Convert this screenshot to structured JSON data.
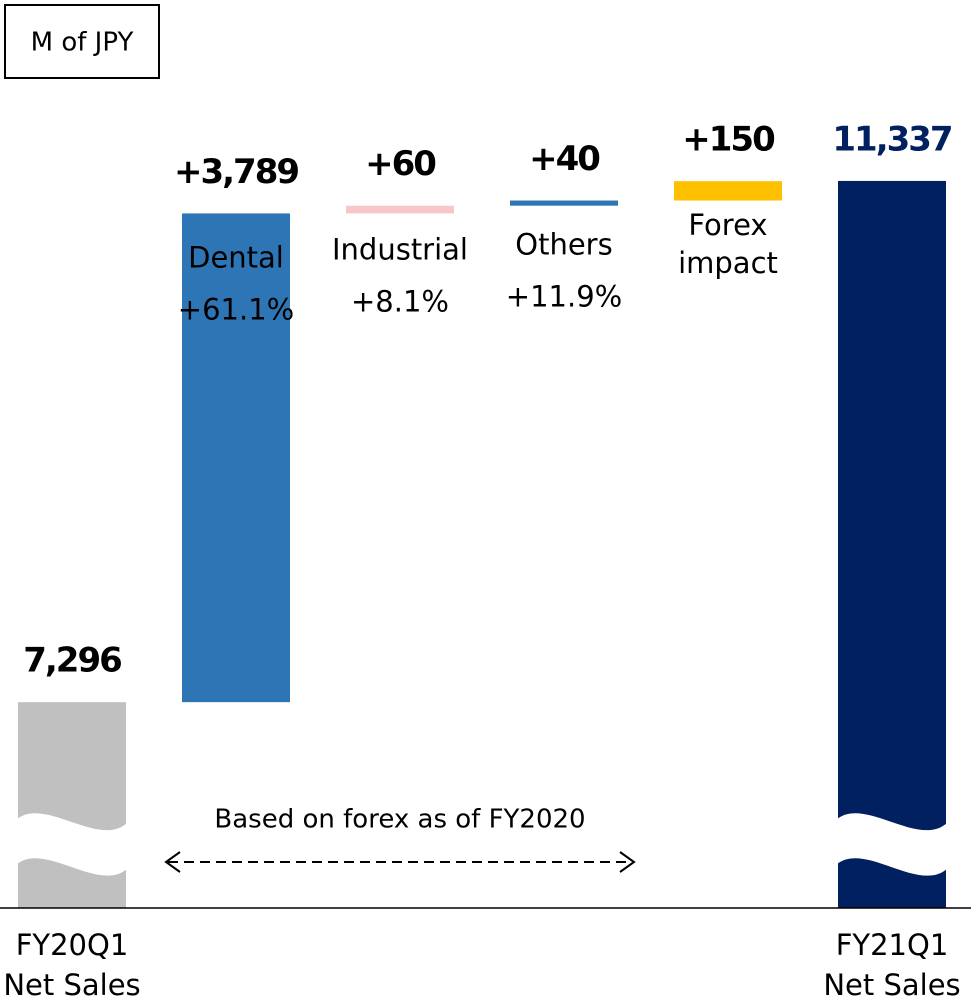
{
  "chart_data": {
    "type": "waterfall",
    "unit_label": "M of JPY",
    "categories": [
      "FY20Q1\nNet Sales",
      "Dental",
      "Industrial",
      "Others",
      "Forex\nimpact",
      "FY21Q1\nNet Sales"
    ],
    "measures": [
      "absolute",
      "relative",
      "relative",
      "relative",
      "relative",
      "total"
    ],
    "values": [
      7296,
      3789,
      60,
      40,
      150,
      11337
    ],
    "value_labels": [
      "7,296",
      "+3,789",
      "+60",
      "+40",
      "+150",
      "11,337"
    ],
    "growth_labels": [
      null,
      "+61.1%",
      "+8.1%",
      "+11.9%",
      null,
      null
    ],
    "colors": [
      "#c0c0c0",
      "#2e75b6",
      "#f8c8c8",
      "#2e75b6",
      "#ffc000",
      "#002060"
    ],
    "label_colors": [
      "#000000",
      "#000000",
      "#000000",
      "#000000",
      "#000000",
      "#002060"
    ],
    "ylim": [
      5700,
      11600
    ],
    "axis_break": true,
    "annotation": "Based on forex as of FY2020"
  }
}
